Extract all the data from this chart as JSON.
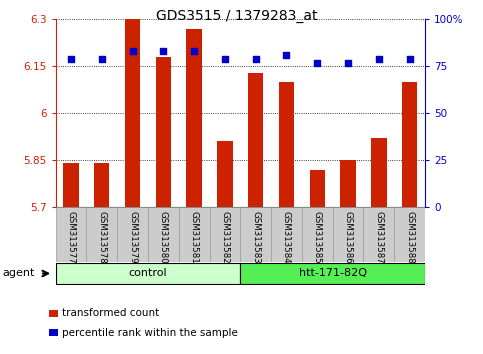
{
  "title": "GDS3515 / 1379283_at",
  "samples": [
    "GSM313577",
    "GSM313578",
    "GSM313579",
    "GSM313580",
    "GSM313581",
    "GSM313582",
    "GSM313583",
    "GSM313584",
    "GSM313585",
    "GSM313586",
    "GSM313587",
    "GSM313588"
  ],
  "bar_values": [
    5.84,
    5.84,
    6.3,
    6.18,
    6.27,
    5.91,
    6.13,
    6.1,
    5.82,
    5.85,
    5.92,
    6.1
  ],
  "percentile_values": [
    79,
    79,
    83,
    83,
    83,
    79,
    79,
    81,
    77,
    77,
    79,
    79
  ],
  "ymin": 5.7,
  "ymax": 6.3,
  "yticks": [
    5.7,
    5.85,
    6.0,
    6.15,
    6.3
  ],
  "ytick_labels": [
    "5.7",
    "5.85",
    "6",
    "6.15",
    "6.3"
  ],
  "y2min": 0,
  "y2max": 100,
  "y2ticks": [
    0,
    25,
    50,
    75,
    100
  ],
  "y2tick_labels": [
    "0",
    "25",
    "50",
    "75",
    "100%"
  ],
  "bar_color": "#cc2200",
  "dot_color": "#0000cc",
  "groups": [
    {
      "label": "control",
      "start": 0,
      "end": 5,
      "color": "#ccffcc"
    },
    {
      "label": "htt-171-82Q",
      "start": 6,
      "end": 11,
      "color": "#55ee55"
    }
  ],
  "agent_label": "agent",
  "legend_items": [
    {
      "color": "#cc2200",
      "label": "transformed count"
    },
    {
      "color": "#0000cc",
      "label": "percentile rank within the sample"
    }
  ],
  "tick_area_color": "#cccccc",
  "tick_area_border": "#999999",
  "bar_base": 5.7,
  "fig_width": 4.83,
  "fig_height": 3.54,
  "fig_dpi": 100
}
